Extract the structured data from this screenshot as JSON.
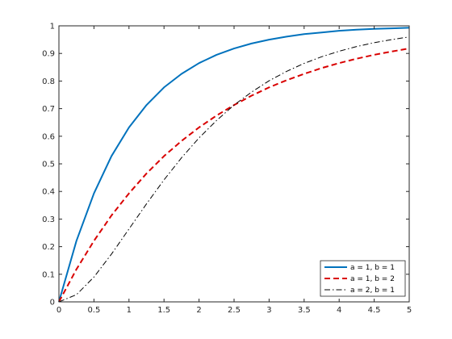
{
  "chart_data": {
    "type": "line",
    "title": "",
    "xlabel": "",
    "ylabel": "",
    "xlim": [
      0,
      5
    ],
    "ylim": [
      0,
      1
    ],
    "x_ticks": [
      "0",
      "0.5",
      "1",
      "1.5",
      "2",
      "2.5",
      "3",
      "3.5",
      "4",
      "4.5",
      "5"
    ],
    "y_ticks": [
      "0",
      "0.1",
      "0.2",
      "0.3",
      "0.4",
      "0.5",
      "0.6",
      "0.7",
      "0.8",
      "0.9",
      "1"
    ],
    "grid": false,
    "legend_position": "bottom-right",
    "x": [
      0,
      0.25,
      0.5,
      0.75,
      1,
      1.25,
      1.5,
      1.75,
      2,
      2.25,
      2.5,
      2.75,
      3,
      3.25,
      3.5,
      3.75,
      4,
      4.25,
      4.5,
      4.75,
      5
    ],
    "series": [
      {
        "name": "a = 1, b = 1",
        "color": "#0072BD",
        "style": "solid",
        "values": [
          0,
          0.221,
          0.393,
          0.528,
          0.632,
          0.713,
          0.777,
          0.826,
          0.865,
          0.895,
          0.918,
          0.936,
          0.95,
          0.961,
          0.97,
          0.976,
          0.982,
          0.986,
          0.989,
          0.991,
          0.993
        ]
      },
      {
        "name": "a = 1, b = 2",
        "color": "#D90000",
        "style": "dashed",
        "values": [
          0,
          0.118,
          0.221,
          0.313,
          0.393,
          0.465,
          0.528,
          0.583,
          0.632,
          0.675,
          0.713,
          0.747,
          0.777,
          0.803,
          0.826,
          0.847,
          0.865,
          0.881,
          0.895,
          0.907,
          0.918
        ]
      },
      {
        "name": "a = 2, b = 1",
        "color": "#000000",
        "style": "dashdot",
        "values": [
          0,
          0.026,
          0.09,
          0.173,
          0.264,
          0.355,
          0.442,
          0.522,
          0.594,
          0.657,
          0.713,
          0.76,
          0.801,
          0.835,
          0.864,
          0.888,
          0.908,
          0.925,
          0.939,
          0.95,
          0.96
        ]
      }
    ]
  }
}
